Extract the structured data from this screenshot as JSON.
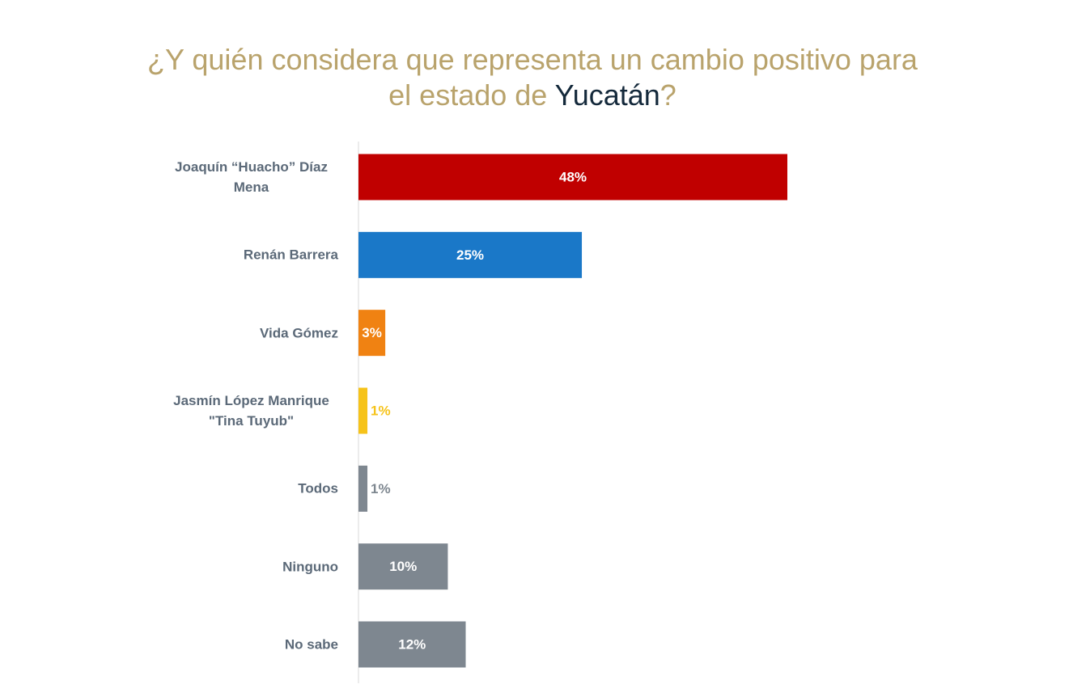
{
  "chart_data": {
    "type": "bar",
    "orientation": "horizontal",
    "title_parts": [
      {
        "text": "¿Y quién considera que representa un cambio positivo para",
        "color": "#b9a36c"
      },
      {
        "text": "el estado de ",
        "color": "#b9a36c"
      },
      {
        "text": "Yucatán",
        "color": "#14293b"
      },
      {
        "text": "?",
        "color": "#b9a36c"
      }
    ],
    "categories": [
      "Joaquín “Huacho” Díaz Mena",
      "Renán Barrera",
      "Vida Gómez",
      "Jasmín López Manrique \"Tina Tuyub\"",
      "Todos",
      "Ninguno",
      "No sabe"
    ],
    "values": [
      48,
      25,
      3,
      1,
      1,
      10,
      12
    ],
    "value_labels": [
      "48%",
      "25%",
      "3%",
      "1%",
      "1%",
      "10%",
      "12%"
    ],
    "colors": [
      "#c00000",
      "#1a78c8",
      "#f08212",
      "#f6c31a",
      "#7e8790",
      "#7e8790",
      "#7e8790"
    ]
  }
}
